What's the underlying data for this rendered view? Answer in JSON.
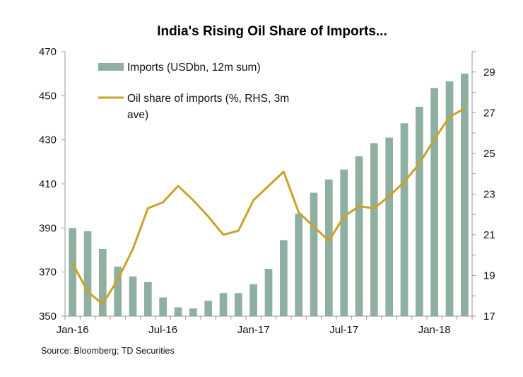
{
  "chart_data": {
    "type": "bar+line",
    "title": "India's Rising Oil Share of Imports...",
    "source": "Source: Bloomberg; TD Securities",
    "x_tick_labels": [
      "Jan-16",
      "Jul-16",
      "Jan-17",
      "Jul-17",
      "Jan-18"
    ],
    "categories": [
      "Jan-16",
      "Feb-16",
      "Mar-16",
      "Apr-16",
      "May-16",
      "Jun-16",
      "Jul-16",
      "Aug-16",
      "Sep-16",
      "Oct-16",
      "Nov-16",
      "Dec-16",
      "Jan-17",
      "Feb-17",
      "Mar-17",
      "Apr-17",
      "May-17",
      "Jun-17",
      "Jul-17",
      "Aug-17",
      "Sep-17",
      "Oct-17",
      "Nov-17",
      "Dec-17",
      "Jan-18",
      "Feb-18",
      "Mar-18"
    ],
    "left_axis": {
      "ylim": [
        350,
        470
      ],
      "ticks": [
        350,
        370,
        390,
        410,
        430,
        450,
        470
      ]
    },
    "right_axis": {
      "ylim": [
        17,
        30
      ],
      "ticks": [
        17,
        19,
        21,
        23,
        25,
        27,
        29
      ]
    },
    "series": [
      {
        "name": "Imports (USDbn, 12m sum)",
        "type": "bar",
        "axis": "left",
        "color": "#8fb0a0",
        "values": [
          390,
          388.5,
          380.5,
          372.5,
          368,
          365.5,
          358.5,
          354,
          353.5,
          357,
          360.5,
          360.5,
          364.5,
          371.5,
          384.5,
          396.5,
          406,
          412,
          416.5,
          422.5,
          428.5,
          431,
          437.5,
          445,
          453.5,
          456.5,
          460
        ]
      },
      {
        "name": "Oil share of imports (%, RHS, 3m ave)",
        "legend_lines": [
          "Oil share of imports (%, RHS, 3m",
          "ave)"
        ],
        "type": "line",
        "axis": "right",
        "color": "#c9a227",
        "values": [
          19.6,
          18.2,
          17.6,
          18.8,
          20.3,
          22.3,
          22.6,
          23.4,
          22.7,
          21.9,
          21.0,
          21.2,
          22.7,
          23.4,
          24.1,
          22.1,
          21.4,
          20.7,
          21.9,
          22.4,
          22.3,
          22.9,
          23.6,
          24.5,
          25.7,
          26.8,
          27.2
        ]
      }
    ]
  }
}
